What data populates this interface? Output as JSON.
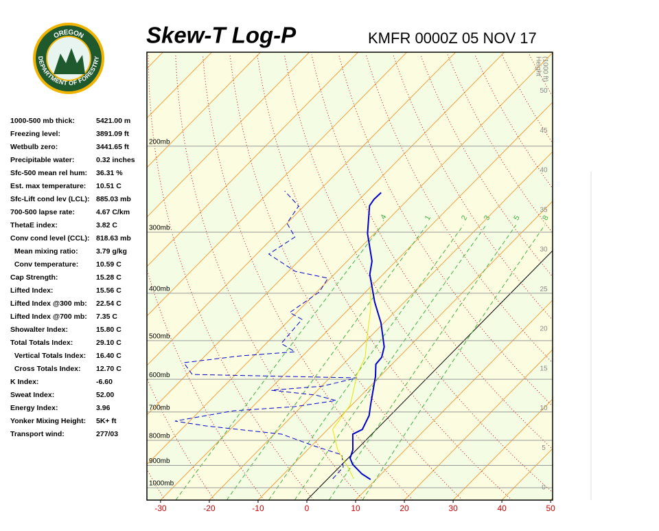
{
  "header": {
    "title": "Skew-T Log-P",
    "station": "KMFR 0000Z 05 NOV 17"
  },
  "logo": {
    "top_text": "OREGON",
    "bottom_text": "DEPARTMENT OF FORESTRY"
  },
  "indices": [
    {
      "label": "1000-500 mb thick:",
      "value": "5421.00 m"
    },
    {
      "label": "Freezing level:",
      "value": "3891.09 ft"
    },
    {
      "label": "Wetbulb zero:",
      "value": "3441.65 ft"
    },
    {
      "label": "Precipitable water:",
      "value": "0.32 inches"
    },
    {
      "label": "Sfc-500 mean rel hum:",
      "value": "36.31 %"
    },
    {
      "label": "Est. max temperature:",
      "value": "10.51 C"
    },
    {
      "label": "Sfc-Lift cond lev (LCL):",
      "value": "885.03 mb"
    },
    {
      "label": "700-500 lapse rate:",
      "value": "4.67 C/km"
    },
    {
      "label": "ThetaE index:",
      "value": "3.82 C"
    },
    {
      "label": "Conv cond level (CCL):",
      "value": "818.63 mb"
    },
    {
      "label": "  Mean mixing ratio:",
      "value": "3.79 g/kg"
    },
    {
      "label": "  Conv temperature:",
      "value": "10.59 C"
    },
    {
      "label": "Cap Strength:",
      "value": "15.28 C"
    },
    {
      "label": "Lifted Index:",
      "value": "15.56 C"
    },
    {
      "label": "Lifted Index @300 mb:",
      "value": "22.54 C"
    },
    {
      "label": "Lifted Index @700 mb:",
      "value": "7.35 C"
    },
    {
      "label": "Showalter Index:",
      "value": "15.80 C"
    },
    {
      "label": "Total Totals Index:",
      "value": "29.10 C"
    },
    {
      "label": "  Vertical Totals Index:",
      "value": "16.40 C"
    },
    {
      "label": "  Cross Totals Index:",
      "value": "12.70 C"
    },
    {
      "label": "K Index:",
      "value": "-6.60"
    },
    {
      "label": "Sweat Index:",
      "value": "52.00"
    },
    {
      "label": "Energy Index:",
      "value": "3.96"
    },
    {
      "label": "Yonker Mixing Height:",
      "value": "5K+ ft"
    },
    {
      "label": "Transport wind:",
      "value": "277/03"
    }
  ],
  "chart_data": {
    "type": "skewt",
    "xlim": [
      -32.8,
      50.4
    ],
    "xticks": [
      -30,
      -20,
      -10,
      0,
      10,
      20,
      30,
      40,
      50
    ],
    "ylim": [
      1060,
      128.5
    ],
    "ylog": true,
    "yticks": [
      {
        "value": 1000,
        "label": "1000mb"
      },
      {
        "value": 900,
        "label": "900mb"
      },
      {
        "value": 800,
        "label": "800mb"
      },
      {
        "value": 700,
        "label": "700mb"
      },
      {
        "value": 600,
        "label": "600mb"
      },
      {
        "value": 500,
        "label": "500mb"
      },
      {
        "value": 400,
        "label": "400mb"
      },
      {
        "value": 300,
        "label": "300mb"
      },
      {
        "value": 200,
        "label": "200mb"
      }
    ],
    "height_axis": {
      "label": [
        "Height",
        "(1000 ft)"
      ],
      "lim": [
        -1.56,
        54.9
      ],
      "ticks": [
        0,
        5,
        10,
        15,
        20,
        25,
        30,
        35,
        40,
        45,
        50
      ]
    },
    "mixing_ratios": [
      {
        "value": 0.4,
        "label": ".4"
      },
      1,
      2,
      3,
      5,
      8
    ],
    "series": [
      {
        "color": "#0000cc",
        "dash": false,
        "width": 2,
        "p": [
          962,
          937,
          896,
          870,
          837,
          777,
          760,
          712,
          678,
          632,
          592,
          559,
          541,
          515,
          460,
          417,
          366,
          344,
          302,
          265,
          257,
          249
        ],
        "values": [
          8.9,
          6.0,
          2.2,
          0.4,
          -0.7,
          -3.9,
          -2.9,
          -4.3,
          -6.1,
          -8.6,
          -10.9,
          -13.3,
          -13.5,
          -15.1,
          -20.6,
          -26.1,
          -32.7,
          -34.9,
          -41.4,
          -46.6,
          -47.0,
          -46.9
        ]
      },
      {
        "color": "#0000cc",
        "dash": true,
        "width": 1,
        "p": [
          958.8,
          907.5,
          856,
          823.5,
          776.9,
          747.3,
          730.6,
          695.9,
          682.4,
          663.2,
          646.3,
          631.7,
          619.7,
          596.1,
          586.4,
          554.9,
          537.3,
          527.0,
          506.8,
          452.6,
          438.1,
          397.6,
          372.7,
          360.8,
          332.7,
          306.9,
          287.7,
          265.3,
          247.1
        ],
        "values": [
          1.0,
          0.8,
          -2.0,
          -9.0,
          -18.5,
          -35.7,
          -43.0,
          -33.1,
          -21.3,
          -14.1,
          -19.4,
          -29.5,
          -19.8,
          -14.4,
          -48.9,
          -53.0,
          -42.8,
          -32.4,
          -36.9,
          -37.5,
          -41.4,
          -39.5,
          -40.5,
          -48.6,
          -57.5,
          -55.6,
          -60.0,
          -61.1,
          -67.0
        ]
      },
      {
        "color": "#e6e600",
        "dash": false,
        "width": 1,
        "p": [
          958.8,
          913.4,
          836.9,
          759.6,
          678.0,
          635.9,
          586.4,
          540.8,
          490.6,
          431.0,
          391.2
        ],
        "values": [
          5.3,
          2.2,
          -3.8,
          -9.0,
          -10.3,
          -12.4,
          -15.1,
          -16.9,
          -20.7,
          -25.5,
          -29.7
        ]
      }
    ]
  }
}
